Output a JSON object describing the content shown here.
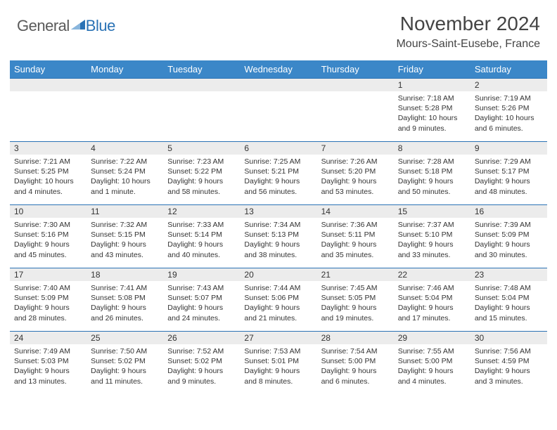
{
  "brand": {
    "part1": "General",
    "part2": "Blue"
  },
  "title": "November 2024",
  "location": "Mours-Saint-Eusebe, France",
  "colors": {
    "header_bg": "#3b87c8",
    "border": "#2a72b5",
    "daynum_bg": "#ececec",
    "text": "#333333",
    "logo_gray": "#5a5a5a",
    "logo_blue": "#2a72b5"
  },
  "weekdays": [
    "Sunday",
    "Monday",
    "Tuesday",
    "Wednesday",
    "Thursday",
    "Friday",
    "Saturday"
  ],
  "weeks": [
    [
      null,
      null,
      null,
      null,
      null,
      {
        "n": "1",
        "sr": "Sunrise: 7:18 AM",
        "ss": "Sunset: 5:28 PM",
        "dl": "Daylight: 10 hours and 9 minutes."
      },
      {
        "n": "2",
        "sr": "Sunrise: 7:19 AM",
        "ss": "Sunset: 5:26 PM",
        "dl": "Daylight: 10 hours and 6 minutes."
      }
    ],
    [
      {
        "n": "3",
        "sr": "Sunrise: 7:21 AM",
        "ss": "Sunset: 5:25 PM",
        "dl": "Daylight: 10 hours and 4 minutes."
      },
      {
        "n": "4",
        "sr": "Sunrise: 7:22 AM",
        "ss": "Sunset: 5:24 PM",
        "dl": "Daylight: 10 hours and 1 minute."
      },
      {
        "n": "5",
        "sr": "Sunrise: 7:23 AM",
        "ss": "Sunset: 5:22 PM",
        "dl": "Daylight: 9 hours and 58 minutes."
      },
      {
        "n": "6",
        "sr": "Sunrise: 7:25 AM",
        "ss": "Sunset: 5:21 PM",
        "dl": "Daylight: 9 hours and 56 minutes."
      },
      {
        "n": "7",
        "sr": "Sunrise: 7:26 AM",
        "ss": "Sunset: 5:20 PM",
        "dl": "Daylight: 9 hours and 53 minutes."
      },
      {
        "n": "8",
        "sr": "Sunrise: 7:28 AM",
        "ss": "Sunset: 5:18 PM",
        "dl": "Daylight: 9 hours and 50 minutes."
      },
      {
        "n": "9",
        "sr": "Sunrise: 7:29 AM",
        "ss": "Sunset: 5:17 PM",
        "dl": "Daylight: 9 hours and 48 minutes."
      }
    ],
    [
      {
        "n": "10",
        "sr": "Sunrise: 7:30 AM",
        "ss": "Sunset: 5:16 PM",
        "dl": "Daylight: 9 hours and 45 minutes."
      },
      {
        "n": "11",
        "sr": "Sunrise: 7:32 AM",
        "ss": "Sunset: 5:15 PM",
        "dl": "Daylight: 9 hours and 43 minutes."
      },
      {
        "n": "12",
        "sr": "Sunrise: 7:33 AM",
        "ss": "Sunset: 5:14 PM",
        "dl": "Daylight: 9 hours and 40 minutes."
      },
      {
        "n": "13",
        "sr": "Sunrise: 7:34 AM",
        "ss": "Sunset: 5:13 PM",
        "dl": "Daylight: 9 hours and 38 minutes."
      },
      {
        "n": "14",
        "sr": "Sunrise: 7:36 AM",
        "ss": "Sunset: 5:11 PM",
        "dl": "Daylight: 9 hours and 35 minutes."
      },
      {
        "n": "15",
        "sr": "Sunrise: 7:37 AM",
        "ss": "Sunset: 5:10 PM",
        "dl": "Daylight: 9 hours and 33 minutes."
      },
      {
        "n": "16",
        "sr": "Sunrise: 7:39 AM",
        "ss": "Sunset: 5:09 PM",
        "dl": "Daylight: 9 hours and 30 minutes."
      }
    ],
    [
      {
        "n": "17",
        "sr": "Sunrise: 7:40 AM",
        "ss": "Sunset: 5:09 PM",
        "dl": "Daylight: 9 hours and 28 minutes."
      },
      {
        "n": "18",
        "sr": "Sunrise: 7:41 AM",
        "ss": "Sunset: 5:08 PM",
        "dl": "Daylight: 9 hours and 26 minutes."
      },
      {
        "n": "19",
        "sr": "Sunrise: 7:43 AM",
        "ss": "Sunset: 5:07 PM",
        "dl": "Daylight: 9 hours and 24 minutes."
      },
      {
        "n": "20",
        "sr": "Sunrise: 7:44 AM",
        "ss": "Sunset: 5:06 PM",
        "dl": "Daylight: 9 hours and 21 minutes."
      },
      {
        "n": "21",
        "sr": "Sunrise: 7:45 AM",
        "ss": "Sunset: 5:05 PM",
        "dl": "Daylight: 9 hours and 19 minutes."
      },
      {
        "n": "22",
        "sr": "Sunrise: 7:46 AM",
        "ss": "Sunset: 5:04 PM",
        "dl": "Daylight: 9 hours and 17 minutes."
      },
      {
        "n": "23",
        "sr": "Sunrise: 7:48 AM",
        "ss": "Sunset: 5:04 PM",
        "dl": "Daylight: 9 hours and 15 minutes."
      }
    ],
    [
      {
        "n": "24",
        "sr": "Sunrise: 7:49 AM",
        "ss": "Sunset: 5:03 PM",
        "dl": "Daylight: 9 hours and 13 minutes."
      },
      {
        "n": "25",
        "sr": "Sunrise: 7:50 AM",
        "ss": "Sunset: 5:02 PM",
        "dl": "Daylight: 9 hours and 11 minutes."
      },
      {
        "n": "26",
        "sr": "Sunrise: 7:52 AM",
        "ss": "Sunset: 5:02 PM",
        "dl": "Daylight: 9 hours and 9 minutes."
      },
      {
        "n": "27",
        "sr": "Sunrise: 7:53 AM",
        "ss": "Sunset: 5:01 PM",
        "dl": "Daylight: 9 hours and 8 minutes."
      },
      {
        "n": "28",
        "sr": "Sunrise: 7:54 AM",
        "ss": "Sunset: 5:00 PM",
        "dl": "Daylight: 9 hours and 6 minutes."
      },
      {
        "n": "29",
        "sr": "Sunrise: 7:55 AM",
        "ss": "Sunset: 5:00 PM",
        "dl": "Daylight: 9 hours and 4 minutes."
      },
      {
        "n": "30",
        "sr": "Sunrise: 7:56 AM",
        "ss": "Sunset: 4:59 PM",
        "dl": "Daylight: 9 hours and 3 minutes."
      }
    ]
  ]
}
